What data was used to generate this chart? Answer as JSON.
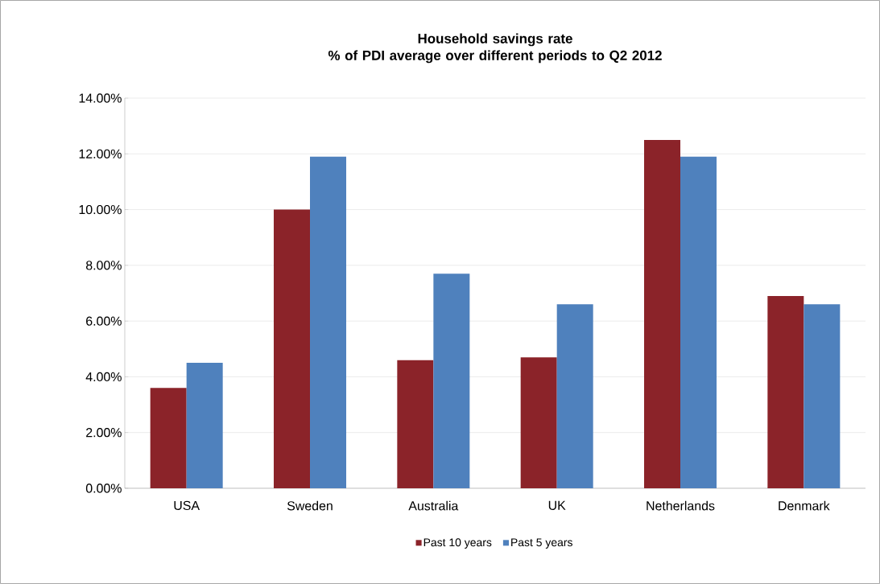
{
  "chart_data": {
    "type": "bar",
    "title": "Household savings rate\n% of PDI average over different periods to Q2 2012",
    "categories": [
      "USA",
      "Sweden",
      "Australia",
      "UK",
      "Netherlands",
      "Denmark"
    ],
    "series": [
      {
        "name": "Past 10 years",
        "color": "#8b2329",
        "values": [
          3.6,
          10.0,
          4.6,
          4.7,
          12.5,
          6.9
        ]
      },
      {
        "name": "Past 5 years",
        "color": "#4f81bd",
        "values": [
          4.5,
          11.9,
          7.7,
          6.6,
          11.9,
          6.6
        ]
      }
    ],
    "ylim": [
      0,
      14
    ],
    "yticks": [
      {
        "value": 0,
        "label": "0.00%"
      },
      {
        "value": 2,
        "label": "2.00%"
      },
      {
        "value": 4,
        "label": "4.00%"
      },
      {
        "value": 6,
        "label": "6.00%"
      },
      {
        "value": 8,
        "label": "8.00%"
      },
      {
        "value": 10,
        "label": "10.00%"
      },
      {
        "value": 12,
        "label": "12.00%"
      },
      {
        "value": 14,
        "label": "14.00%"
      }
    ],
    "grid": "y",
    "legend": "bottom"
  }
}
